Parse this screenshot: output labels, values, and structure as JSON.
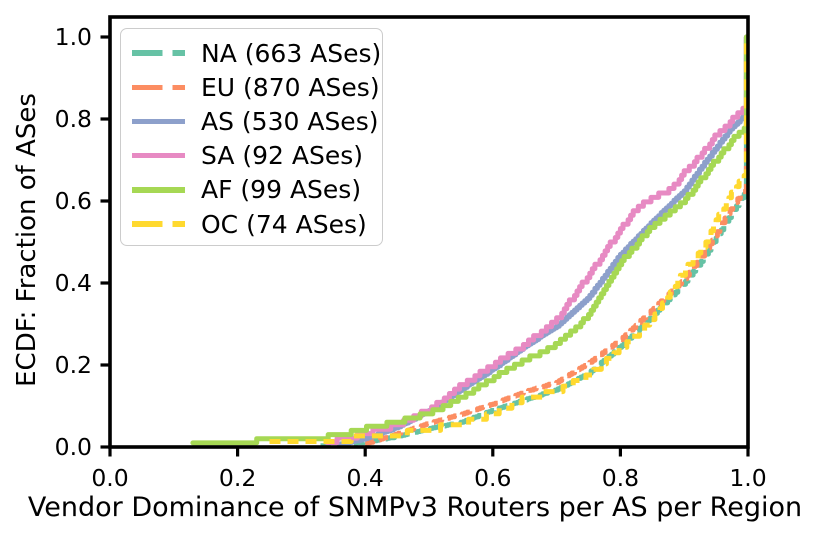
{
  "chart_data": {
    "type": "line",
    "subtype": "ecdf-step",
    "title": "",
    "xlabel": "Vendor Dominance of SNMPv3 Routers per AS per Region",
    "ylabel": "ECDF: Fraction of ASes",
    "xlim": [
      0.0,
      1.0
    ],
    "ylim": [
      0.0,
      1.05
    ],
    "grid": false,
    "legend_position": "upper left",
    "frame_color": "#000000",
    "x_ticks": [
      0.0,
      0.2,
      0.4,
      0.6,
      0.8,
      1.0
    ],
    "x_tick_labels": [
      "0.0",
      "0.2",
      "0.4",
      "0.6",
      "0.8",
      "1.0"
    ],
    "y_ticks": [
      0.0,
      0.2,
      0.4,
      0.6,
      0.8,
      1.0
    ],
    "y_tick_labels": [
      "0.0",
      "0.2",
      "0.4",
      "0.6",
      "0.8",
      "1.0"
    ],
    "series": [
      {
        "name": "NA (663 ASes)",
        "region": "NA",
        "as_count": 663,
        "color": "#66c2a5",
        "dashed": true,
        "points": [
          [
            0.33,
            0.003
          ],
          [
            0.4,
            0.012
          ],
          [
            0.45,
            0.025
          ],
          [
            0.5,
            0.045
          ],
          [
            0.55,
            0.06
          ],
          [
            0.6,
            0.09
          ],
          [
            0.65,
            0.115
          ],
          [
            0.7,
            0.14
          ],
          [
            0.75,
            0.18
          ],
          [
            0.8,
            0.245
          ],
          [
            0.85,
            0.32
          ],
          [
            0.9,
            0.4
          ],
          [
            0.93,
            0.46
          ],
          [
            0.95,
            0.51
          ],
          [
            0.97,
            0.56
          ],
          [
            0.995,
            0.62
          ],
          [
            1.0,
            1.0
          ]
        ]
      },
      {
        "name": "EU (870 ASes)",
        "region": "EU",
        "as_count": 870,
        "color": "#fc8d62",
        "dashed": true,
        "points": [
          [
            0.4,
            0.008
          ],
          [
            0.45,
            0.032
          ],
          [
            0.5,
            0.058
          ],
          [
            0.55,
            0.08
          ],
          [
            0.6,
            0.105
          ],
          [
            0.65,
            0.135
          ],
          [
            0.7,
            0.158
          ],
          [
            0.75,
            0.205
          ],
          [
            0.8,
            0.262
          ],
          [
            0.85,
            0.335
          ],
          [
            0.9,
            0.41
          ],
          [
            0.93,
            0.47
          ],
          [
            0.95,
            0.52
          ],
          [
            0.97,
            0.575
          ],
          [
            0.995,
            0.63
          ],
          [
            1.0,
            1.0
          ]
        ]
      },
      {
        "name": "AS (530 ASes)",
        "region": "AS",
        "as_count": 530,
        "color": "#8da0cb",
        "dashed": false,
        "points": [
          [
            0.36,
            0.006
          ],
          [
            0.4,
            0.02
          ],
          [
            0.45,
            0.048
          ],
          [
            0.5,
            0.088
          ],
          [
            0.55,
            0.14
          ],
          [
            0.6,
            0.19
          ],
          [
            0.65,
            0.245
          ],
          [
            0.7,
            0.295
          ],
          [
            0.75,
            0.365
          ],
          [
            0.8,
            0.47
          ],
          [
            0.85,
            0.55
          ],
          [
            0.9,
            0.625
          ],
          [
            0.93,
            0.69
          ],
          [
            0.95,
            0.73
          ],
          [
            0.97,
            0.772
          ],
          [
            0.995,
            0.81
          ],
          [
            1.0,
            1.0
          ]
        ]
      },
      {
        "name": "SA (92 ASes)",
        "region": "SA",
        "as_count": 92,
        "color": "#e78ac3",
        "dashed": false,
        "points": [
          [
            0.34,
            0.011
          ],
          [
            0.4,
            0.033
          ],
          [
            0.45,
            0.055
          ],
          [
            0.5,
            0.09
          ],
          [
            0.55,
            0.15
          ],
          [
            0.6,
            0.2
          ],
          [
            0.65,
            0.25
          ],
          [
            0.7,
            0.31
          ],
          [
            0.75,
            0.42
          ],
          [
            0.8,
            0.53
          ],
          [
            0.82,
            0.575
          ],
          [
            0.85,
            0.61
          ],
          [
            0.88,
            0.63
          ],
          [
            0.9,
            0.67
          ],
          [
            0.93,
            0.72
          ],
          [
            0.95,
            0.76
          ],
          [
            0.97,
            0.79
          ],
          [
            0.995,
            0.83
          ],
          [
            1.0,
            1.0
          ]
        ]
      },
      {
        "name": "AF (99 ASes)",
        "region": "AF",
        "as_count": 99,
        "color": "#a6d854",
        "dashed": false,
        "points": [
          [
            0.13,
            0.01
          ],
          [
            0.32,
            0.02
          ],
          [
            0.36,
            0.03
          ],
          [
            0.4,
            0.045
          ],
          [
            0.45,
            0.062
          ],
          [
            0.5,
            0.082
          ],
          [
            0.55,
            0.12
          ],
          [
            0.6,
            0.168
          ],
          [
            0.65,
            0.212
          ],
          [
            0.7,
            0.25
          ],
          [
            0.75,
            0.32
          ],
          [
            0.8,
            0.45
          ],
          [
            0.85,
            0.54
          ],
          [
            0.9,
            0.6
          ],
          [
            0.93,
            0.66
          ],
          [
            0.95,
            0.7
          ],
          [
            0.97,
            0.74
          ],
          [
            0.995,
            0.78
          ],
          [
            1.0,
            1.0
          ]
        ]
      },
      {
        "name": "OC (74 ASes)",
        "region": "OC",
        "as_count": 74,
        "color": "#ffd92f",
        "dashed": true,
        "points": [
          [
            0.25,
            0.0135
          ],
          [
            0.35,
            0.0135
          ],
          [
            0.4,
            0.027
          ],
          [
            0.45,
            0.03
          ],
          [
            0.5,
            0.042
          ],
          [
            0.55,
            0.057
          ],
          [
            0.6,
            0.08
          ],
          [
            0.65,
            0.12
          ],
          [
            0.7,
            0.135
          ],
          [
            0.75,
            0.175
          ],
          [
            0.8,
            0.24
          ],
          [
            0.85,
            0.31
          ],
          [
            0.88,
            0.38
          ],
          [
            0.9,
            0.43
          ],
          [
            0.93,
            0.49
          ],
          [
            0.95,
            0.55
          ],
          [
            0.97,
            0.61
          ],
          [
            0.995,
            0.665
          ],
          [
            1.0,
            1.0
          ]
        ]
      }
    ]
  }
}
